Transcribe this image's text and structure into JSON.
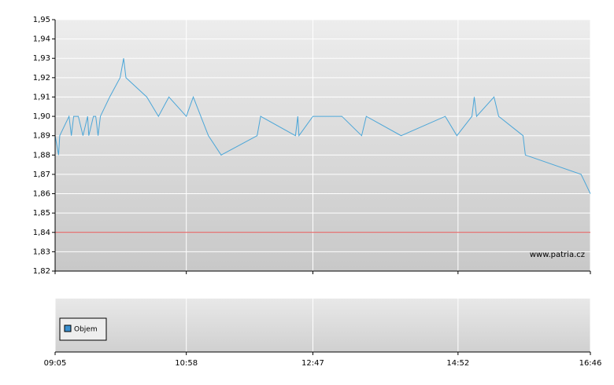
{
  "chart_data": {
    "type": "line",
    "x": [
      "09:05",
      "09:08",
      "09:09",
      "09:17",
      "09:19",
      "09:21",
      "09:25",
      "09:29",
      "09:33",
      "09:34",
      "09:38",
      "09:40",
      "09:42",
      "09:44",
      "09:52",
      "10:01",
      "10:04",
      "10:06",
      "10:24",
      "10:34",
      "10:43",
      "10:58",
      "11:04",
      "11:17",
      "11:28",
      "11:59",
      "12:02",
      "12:32",
      "12:34",
      "12:35",
      "12:47",
      "13:12",
      "13:29",
      "13:33",
      "14:03",
      "14:41",
      "14:51",
      "15:04",
      "15:06",
      "15:08",
      "15:23",
      "15:27",
      "15:48",
      "15:50",
      "16:38",
      "16:46"
    ],
    "values": [
      1.89,
      1.88,
      1.89,
      1.9,
      1.89,
      1.9,
      1.9,
      1.89,
      1.9,
      1.89,
      1.9,
      1.9,
      1.89,
      1.9,
      1.91,
      1.92,
      1.93,
      1.92,
      1.91,
      1.9,
      1.91,
      1.9,
      1.91,
      1.89,
      1.88,
      1.89,
      1.9,
      1.89,
      1.9,
      1.89,
      1.9,
      1.9,
      1.89,
      1.9,
      1.89,
      1.9,
      1.89,
      1.9,
      1.91,
      1.9,
      1.91,
      1.9,
      1.89,
      1.88,
      1.87,
      1.86
    ],
    "color": "#4ba6d8",
    "reference_line": {
      "value": 1.84,
      "color": "#e05050"
    },
    "xlim": [
      "09:05",
      "16:46"
    ],
    "xticks": [
      "09:05",
      "10:58",
      "12:47",
      "14:52",
      "16:46"
    ],
    "ylim": [
      1.82,
      1.95
    ],
    "yticks": [
      {
        "value": 1.82,
        "label": "1,82"
      },
      {
        "value": 1.83,
        "label": "1,83"
      },
      {
        "value": 1.84,
        "label": "1,84"
      },
      {
        "value": 1.85,
        "label": "1,85"
      },
      {
        "value": 1.86,
        "label": "1,86"
      },
      {
        "value": 1.87,
        "label": "1,87"
      },
      {
        "value": 1.88,
        "label": "1,88"
      },
      {
        "value": 1.89,
        "label": "1,89"
      },
      {
        "value": 1.9,
        "label": "1,90"
      },
      {
        "value": 1.91,
        "label": "1,91"
      },
      {
        "value": 1.92,
        "label": "1,92"
      },
      {
        "value": 1.93,
        "label": "1,93"
      },
      {
        "value": 1.94,
        "label": "1,94"
      },
      {
        "value": 1.95,
        "label": "1,95"
      }
    ],
    "grid": true,
    "watermark": "www.patria.cz",
    "volume_legend": {
      "name": "Objem",
      "color": "#3a8fcf"
    }
  }
}
